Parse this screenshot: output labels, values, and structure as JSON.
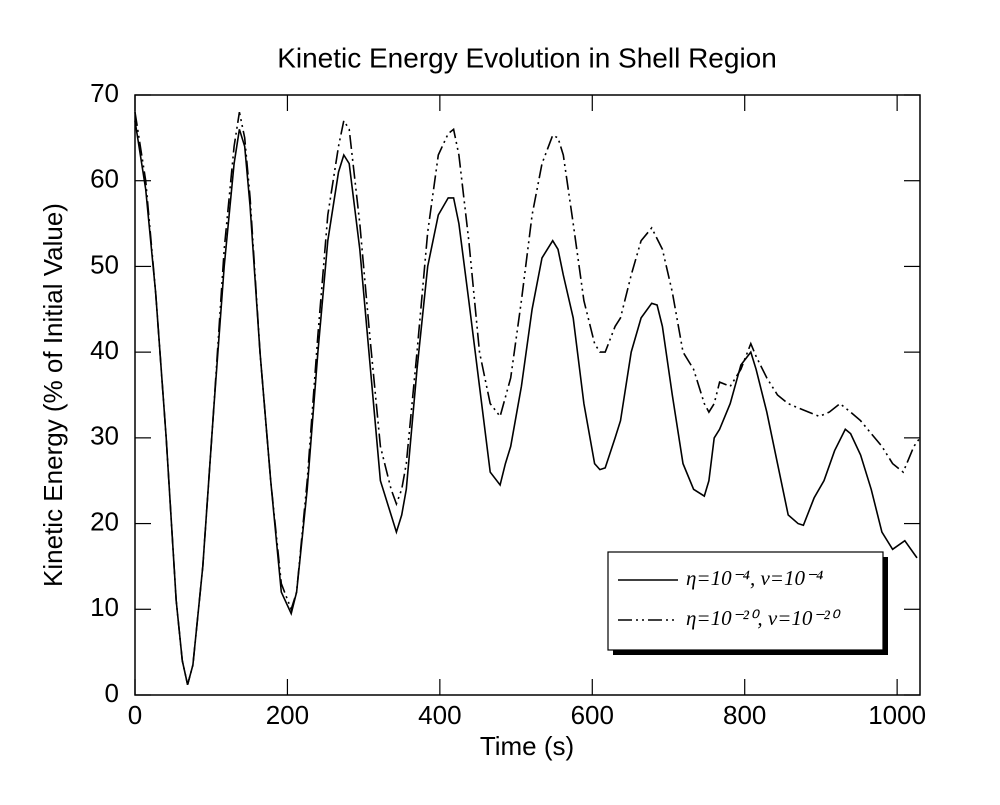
{
  "chart_data": {
    "type": "line",
    "title": "Kinetic Energy Evolution in Shell Region",
    "xlabel": "Time (s)",
    "ylabel": "Kinetic Energy (% of Initial Value)",
    "xlim": [
      0,
      1030
    ],
    "ylim": [
      0,
      70
    ],
    "xticks": [
      0,
      200,
      400,
      600,
      800,
      1000
    ],
    "yticks": [
      0,
      10,
      20,
      30,
      40,
      50,
      60,
      70
    ],
    "legend": "lower right",
    "series": [
      {
        "name": "η=10⁻⁴, ν=10⁻⁴",
        "color": "#000000",
        "linestyle": "solid",
        "x": [
          0,
          14,
          27,
          41,
          54,
          62,
          69,
          76,
          89,
          103,
          117,
          130,
          137,
          144,
          151,
          164,
          178,
          192,
          205,
          212,
          226,
          240,
          253,
          267,
          274,
          281,
          295,
          308,
          322,
          336,
          343,
          350,
          356,
          370,
          384,
          398,
          411,
          418,
          425,
          438,
          452,
          466,
          479,
          486,
          493,
          507,
          521,
          534,
          548,
          555,
          562,
          575,
          589,
          603,
          610,
          617,
          630,
          637,
          651,
          664,
          678,
          685,
          692,
          705,
          719,
          733,
          747,
          753,
          760,
          767,
          781,
          795,
          808,
          815,
          829,
          843,
          857,
          870,
          877,
          891,
          904,
          918,
          932,
          939,
          952,
          966,
          980,
          994,
          1010,
          1026
        ],
        "values": [
          67,
          59,
          47,
          30,
          11,
          4,
          1.2,
          3.5,
          15,
          33,
          50,
          62,
          66,
          64,
          57,
          40,
          25,
          12,
          9.5,
          12,
          24,
          40,
          53,
          61,
          63,
          62,
          52,
          39,
          25,
          21,
          19,
          21,
          24,
          38,
          50,
          56,
          58,
          58,
          55,
          46,
          36,
          26,
          24.5,
          27,
          29,
          36,
          45,
          51,
          53,
          52,
          49,
          44,
          34,
          27,
          26.3,
          26.5,
          30,
          32,
          40,
          44,
          45.7,
          45.5,
          43,
          35,
          27,
          24,
          23.2,
          25,
          30,
          31,
          34,
          38.5,
          40,
          38,
          33,
          27,
          21,
          20,
          19.8,
          23,
          25,
          28.5,
          31,
          30.5,
          28,
          24,
          19,
          17,
          18,
          16
        ]
      },
      {
        "name": "η=10⁻²⁰, ν=10⁻²⁰",
        "color": "#000000",
        "linestyle": "dashdotdot",
        "x": [
          0,
          14,
          27,
          41,
          54,
          62,
          69,
          76,
          89,
          103,
          117,
          130,
          137,
          144,
          151,
          164,
          178,
          192,
          205,
          212,
          226,
          240,
          253,
          267,
          274,
          281,
          295,
          308,
          322,
          336,
          343,
          350,
          356,
          370,
          384,
          398,
          411,
          418,
          425,
          438,
          452,
          466,
          479,
          493,
          507,
          521,
          534,
          548,
          555,
          562,
          575,
          589,
          603,
          610,
          617,
          630,
          637,
          651,
          664,
          678,
          692,
          705,
          719,
          733,
          747,
          753,
          760,
          767,
          781,
          795,
          808,
          815,
          829,
          843,
          857,
          870,
          884,
          898,
          911,
          925,
          939,
          952,
          966,
          980,
          994,
          1008,
          1022,
          1030
        ],
        "values": [
          68,
          60,
          47,
          30,
          11,
          4,
          1.2,
          3.5,
          15,
          33,
          52,
          64,
          68,
          65,
          58,
          40,
          25,
          13,
          10,
          12,
          25,
          42,
          56,
          64,
          67,
          66,
          55,
          42,
          29,
          24,
          22.3,
          24,
          27,
          40,
          54,
          63,
          65.5,
          66,
          63,
          53,
          40,
          34,
          32.5,
          37,
          46,
          56,
          62,
          65.3,
          65,
          63,
          55,
          46,
          41,
          40,
          40,
          43,
          44,
          49,
          53,
          54.5,
          52,
          47,
          40,
          38,
          34,
          33,
          34,
          36.5,
          36,
          38,
          41,
          39.5,
          37,
          35,
          34,
          33.5,
          33,
          32.5,
          33,
          34,
          33,
          32,
          30.5,
          29,
          27,
          26,
          29,
          30
        ]
      }
    ]
  }
}
